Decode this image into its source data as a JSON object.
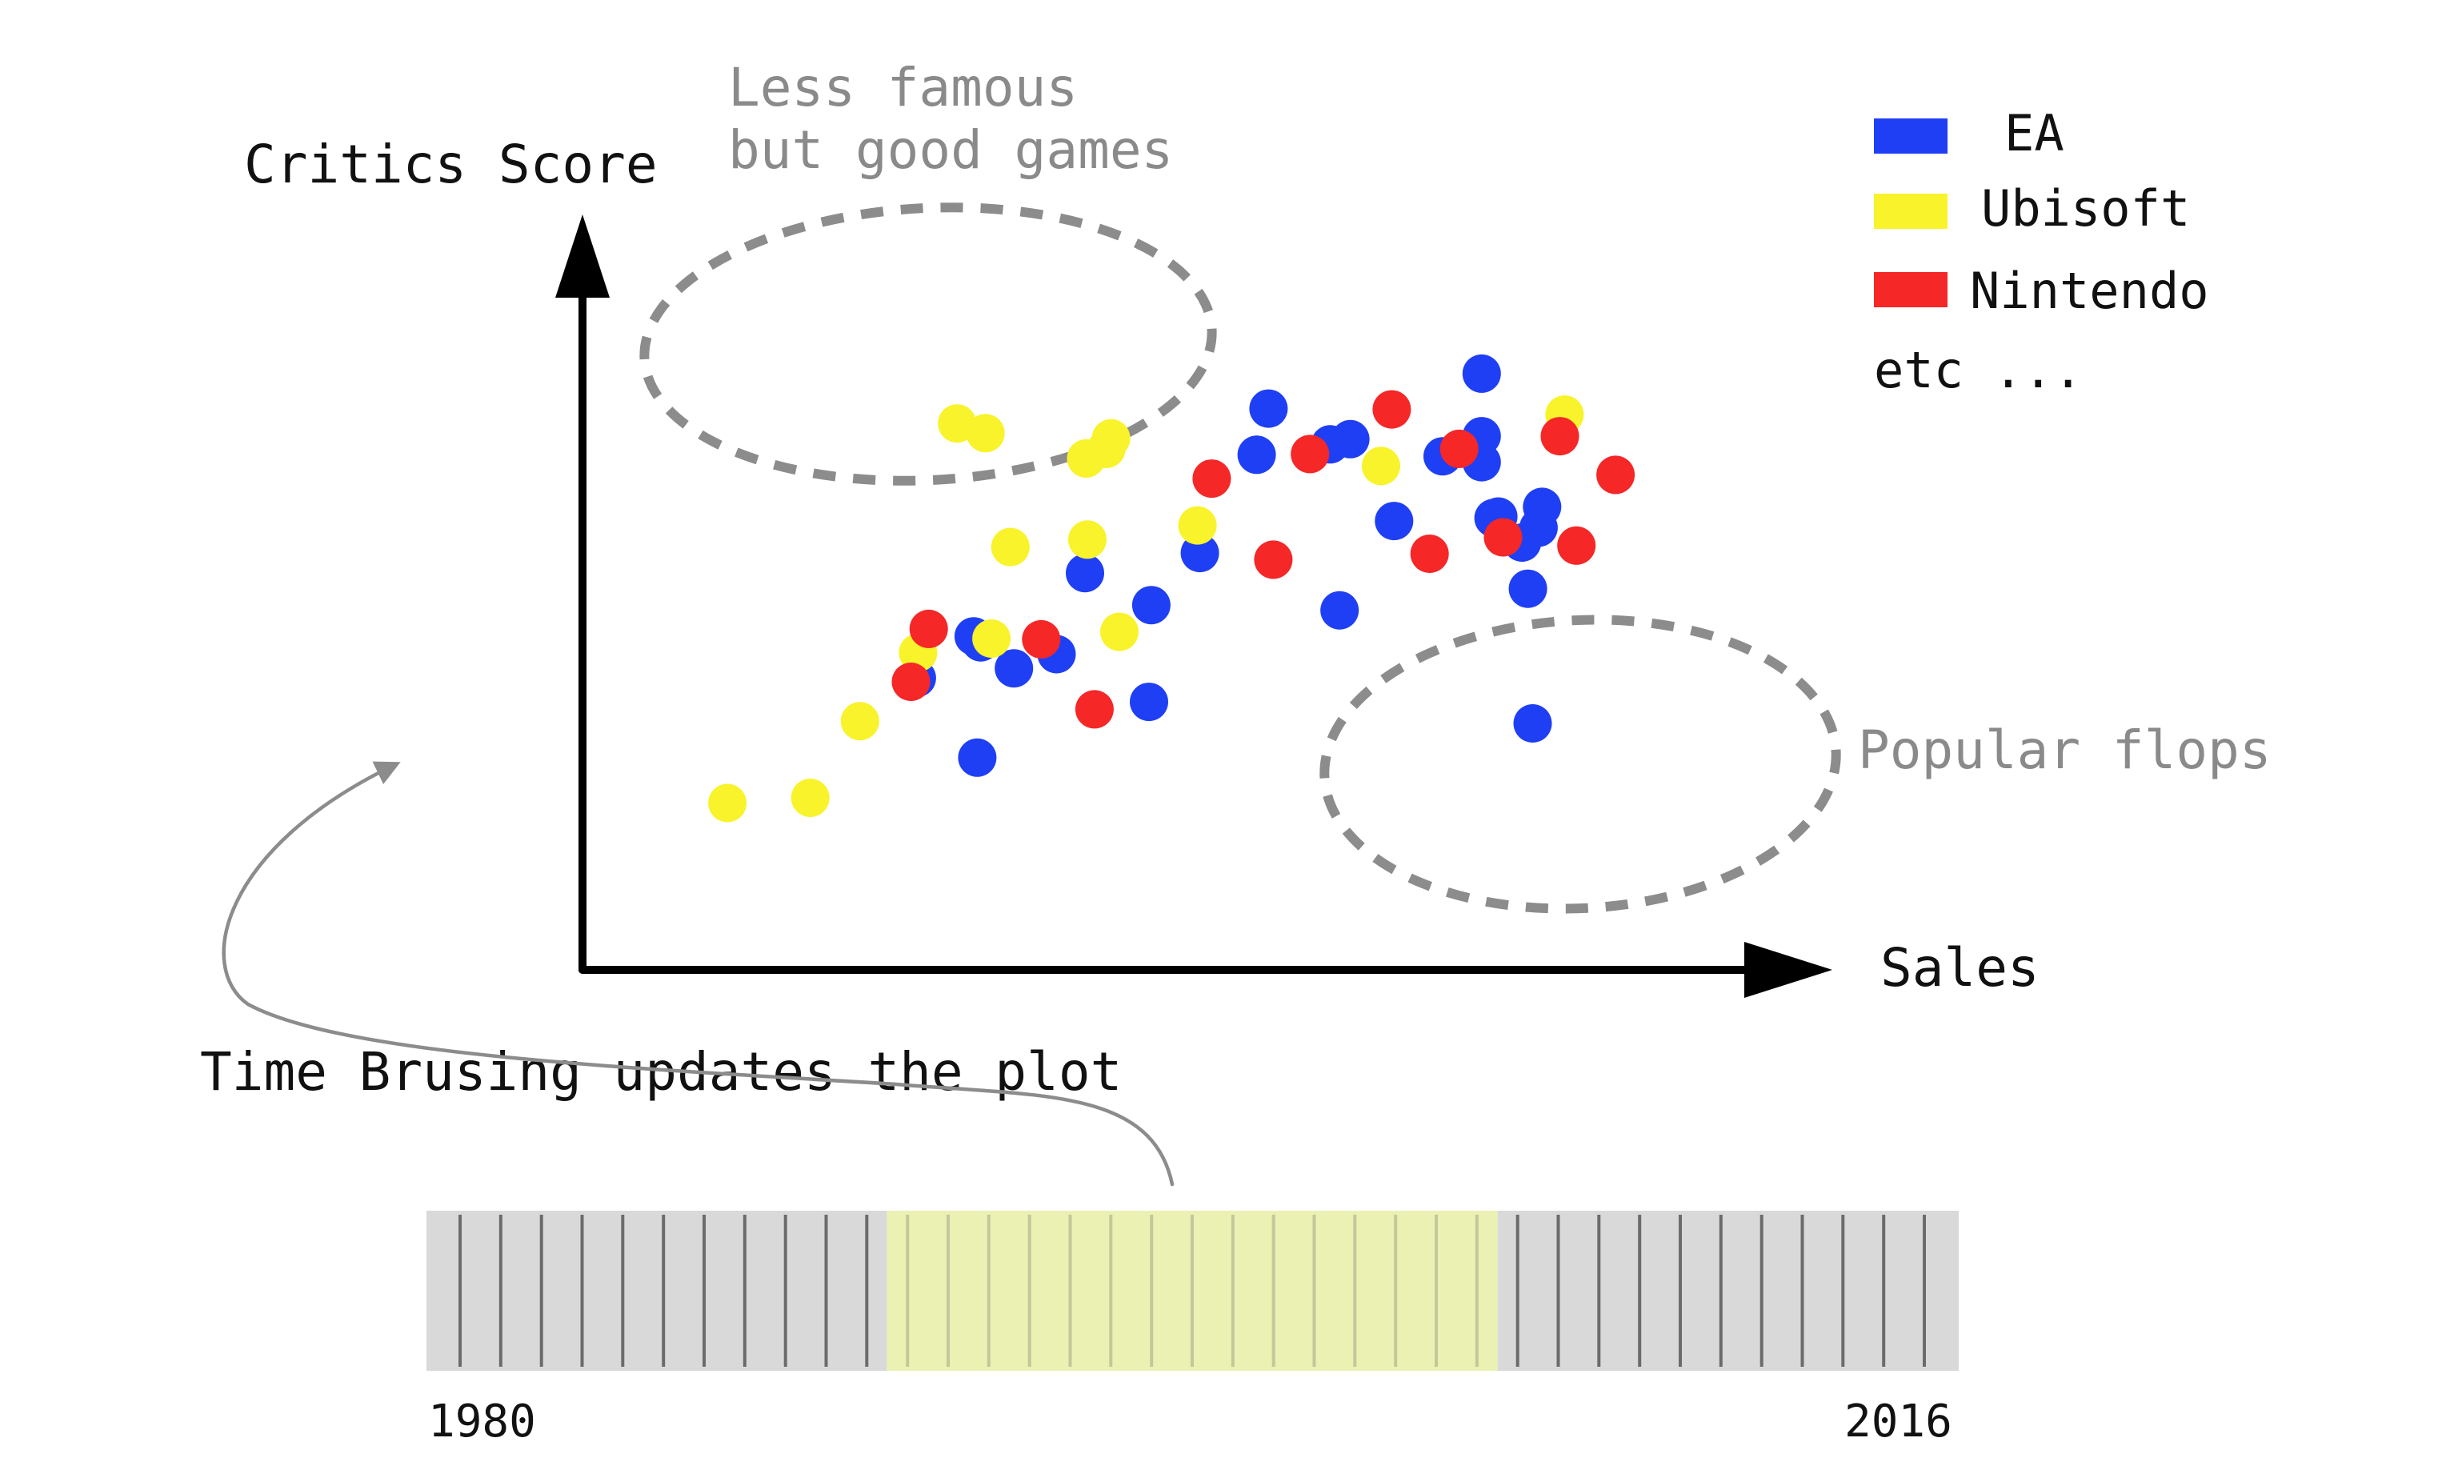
{
  "axes": {
    "y_label": "Critics Score",
    "x_label": "Sales"
  },
  "annotations": {
    "less_famous_line1": "Less famous",
    "less_famous_line2": "but good games",
    "popular_flops": "Popular flops",
    "time_brushing": "Time Brusing updates the plot"
  },
  "legend": {
    "items": [
      {
        "label": "EA",
        "color": "#1f3ff5"
      },
      {
        "label": "Ubisoft",
        "color": "#f8f32b"
      },
      {
        "label": "Nintendo",
        "color": "#f52727"
      }
    ],
    "more": "etc ..."
  },
  "timeline": {
    "start_label": "1980",
    "end_label": "2016",
    "start_year": 1980,
    "end_year": 2016,
    "brush_start_year": 1991,
    "brush_end_year": 2005,
    "track_color": "#d9d9d9",
    "brush_color": "#ebf0b3"
  },
  "chart_data": {
    "type": "scatter",
    "xlabel": "Sales",
    "ylabel": "Critics Score",
    "xlim": [
      0,
      100
    ],
    "ylim": [
      0,
      100
    ],
    "series": [
      {
        "name": "EA",
        "color": "#1f3ff5",
        "points": [
          [
            28.1,
            39.0
          ],
          [
            32.9,
            44.6
          ],
          [
            33.2,
            28.3
          ],
          [
            33.5,
            43.8
          ],
          [
            36.3,
            40.3
          ],
          [
            39.9,
            42.2
          ],
          [
            42.3,
            53.1
          ],
          [
            47.7,
            35.8
          ],
          [
            47.9,
            48.8
          ],
          [
            52.0,
            55.8
          ],
          [
            57.8,
            75.2
          ],
          [
            56.8,
            69.0
          ],
          [
            63.0,
            70.4
          ],
          [
            63.8,
            48.1
          ],
          [
            64.7,
            71.1
          ],
          [
            68.4,
            60.1
          ],
          [
            72.5,
            68.8
          ],
          [
            75.8,
            71.5
          ],
          [
            75.8,
            79.9
          ],
          [
            75.8,
            68.0
          ],
          [
            77.2,
            60.7
          ],
          [
            76.8,
            60.5
          ],
          [
            79.2,
            57.2
          ],
          [
            79.7,
            51.0
          ],
          [
            80.1,
            32.9
          ],
          [
            80.9,
            62.0
          ],
          [
            80.6,
            59.2
          ]
        ]
      },
      {
        "name": "Ubisoft",
        "color": "#f8f32b",
        "points": [
          [
            12.1,
            22.2
          ],
          [
            19.1,
            22.9
          ],
          [
            23.3,
            33.2
          ],
          [
            28.2,
            42.4
          ],
          [
            31.5,
            73.2
          ],
          [
            33.9,
            71.9
          ],
          [
            34.4,
            44.3
          ],
          [
            36.0,
            56.6
          ],
          [
            42.5,
            57.6
          ],
          [
            42.4,
            68.5
          ],
          [
            44.1,
            69.8
          ],
          [
            44.5,
            71.2
          ],
          [
            45.2,
            45.2
          ],
          [
            51.8,
            59.5
          ],
          [
            67.3,
            67.5
          ],
          [
            82.8,
            74.4
          ]
        ]
      },
      {
        "name": "Nintendo",
        "color": "#f52727",
        "points": [
          [
            27.6,
            38.5
          ],
          [
            29.1,
            45.6
          ],
          [
            38.6,
            44.2
          ],
          [
            43.1,
            34.8
          ],
          [
            53.0,
            65.8
          ],
          [
            58.2,
            54.9
          ],
          [
            61.3,
            69.1
          ],
          [
            68.2,
            75.1
          ],
          [
            71.4,
            55.7
          ],
          [
            73.9,
            69.8
          ],
          [
            77.6,
            57.9
          ],
          [
            82.4,
            71.5
          ],
          [
            87.1,
            66.3
          ],
          [
            83.8,
            56.8
          ]
        ]
      }
    ]
  }
}
